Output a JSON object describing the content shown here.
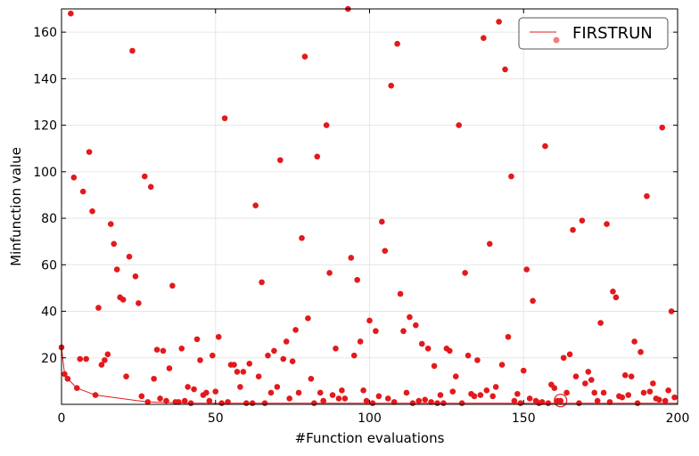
{
  "chart_data": {
    "type": "scatter",
    "title": "",
    "xlabel": "#Function evaluations",
    "ylabel": "Minfunction value",
    "xlim": [
      0,
      200
    ],
    "ylim": [
      0,
      170
    ],
    "xticks": [
      0,
      50,
      100,
      150,
      200
    ],
    "yticks": [
      20,
      40,
      60,
      80,
      100,
      120,
      140,
      160
    ],
    "grid": true,
    "legend_position": "top-right",
    "colors": {
      "points": "#e3191c",
      "line": "#e3191c",
      "legend_marker": "#f08080"
    },
    "series": [
      {
        "name": "FIRSTRUN",
        "points": [
          [
            0,
            24.5
          ],
          [
            1,
            13
          ],
          [
            2,
            11
          ],
          [
            3,
            168
          ],
          [
            4,
            97.5
          ],
          [
            5,
            7
          ],
          [
            6,
            19.5
          ],
          [
            7,
            91.5
          ],
          [
            8,
            19.5
          ],
          [
            9,
            108.5
          ],
          [
            10,
            83
          ],
          [
            11,
            4
          ],
          [
            12,
            41.5
          ],
          [
            13,
            17
          ],
          [
            14,
            19
          ],
          [
            15,
            21.5
          ],
          [
            16,
            77.5
          ],
          [
            17,
            69
          ],
          [
            18,
            58
          ],
          [
            19,
            46
          ],
          [
            20,
            45
          ],
          [
            21,
            12
          ],
          [
            22,
            63.5
          ],
          [
            23,
            152
          ],
          [
            24,
            55
          ],
          [
            25,
            43.5
          ],
          [
            26,
            3.5
          ],
          [
            27,
            98
          ],
          [
            28,
            1
          ],
          [
            29,
            93.5
          ],
          [
            30,
            11
          ],
          [
            31,
            23.5
          ],
          [
            32,
            2.5
          ],
          [
            33,
            23
          ],
          [
            34,
            1.5
          ],
          [
            35,
            15.5
          ],
          [
            36,
            51
          ],
          [
            37,
            1
          ],
          [
            38,
            1
          ],
          [
            39,
            24
          ],
          [
            40,
            1.5
          ],
          [
            41,
            7.5
          ],
          [
            42,
            0.5
          ],
          [
            43,
            6.5
          ],
          [
            44,
            28
          ],
          [
            45,
            19
          ],
          [
            46,
            4
          ],
          [
            47,
            5
          ],
          [
            48,
            1.5
          ],
          [
            49,
            21
          ],
          [
            50,
            5.5
          ],
          [
            51,
            29
          ],
          [
            52,
            0.5
          ],
          [
            53,
            123
          ],
          [
            54,
            1
          ],
          [
            55,
            17
          ],
          [
            56,
            17
          ],
          [
            57,
            14
          ],
          [
            58,
            7.5
          ],
          [
            59,
            14
          ],
          [
            60,
            0.5
          ],
          [
            61,
            17.5
          ],
          [
            62,
            0.5
          ],
          [
            63,
            85.5
          ],
          [
            64,
            12
          ],
          [
            65,
            52.5
          ],
          [
            66,
            0.5
          ],
          [
            67,
            21
          ],
          [
            68,
            5
          ],
          [
            69,
            23
          ],
          [
            70,
            7.5
          ],
          [
            71,
            105
          ],
          [
            72,
            19.5
          ],
          [
            73,
            27
          ],
          [
            74,
            2.5
          ],
          [
            75,
            18.5
          ],
          [
            76,
            32
          ],
          [
            77,
            5
          ],
          [
            78,
            71.5
          ],
          [
            79,
            149.5
          ],
          [
            80,
            37
          ],
          [
            81,
            11
          ],
          [
            82,
            0.5
          ],
          [
            83,
            106.5
          ],
          [
            84,
            5
          ],
          [
            85,
            1.5
          ],
          [
            86,
            120
          ],
          [
            87,
            56.5
          ],
          [
            88,
            4
          ],
          [
            89,
            24
          ],
          [
            90,
            2.5
          ],
          [
            91,
            6
          ],
          [
            92,
            2.5
          ],
          [
            93,
            170
          ],
          [
            94,
            63
          ],
          [
            95,
            21
          ],
          [
            96,
            53.5
          ],
          [
            97,
            27
          ],
          [
            98,
            6
          ],
          [
            99,
            1.5
          ],
          [
            100,
            36
          ],
          [
            101,
            0.5
          ],
          [
            102,
            31.5
          ],
          [
            103,
            3.5
          ],
          [
            104,
            78.5
          ],
          [
            105,
            66
          ],
          [
            106,
            2.5
          ],
          [
            107,
            137
          ],
          [
            108,
            1
          ],
          [
            109,
            155
          ],
          [
            110,
            47.5
          ],
          [
            111,
            31.5
          ],
          [
            112,
            5
          ],
          [
            113,
            37.5
          ],
          [
            114,
            0.5
          ],
          [
            115,
            34
          ],
          [
            116,
            1.5
          ],
          [
            117,
            26
          ],
          [
            118,
            2
          ],
          [
            119,
            24
          ],
          [
            120,
            1
          ],
          [
            121,
            16.5
          ],
          [
            122,
            0.5
          ],
          [
            123,
            4
          ],
          [
            124,
            0.5
          ],
          [
            125,
            24
          ],
          [
            126,
            23
          ],
          [
            127,
            5.5
          ],
          [
            128,
            12
          ],
          [
            129,
            120
          ],
          [
            130,
            0.5
          ],
          [
            131,
            56.5
          ],
          [
            132,
            21
          ],
          [
            133,
            4.5
          ],
          [
            134,
            3.5
          ],
          [
            135,
            19
          ],
          [
            136,
            4
          ],
          [
            137,
            157.5
          ],
          [
            138,
            6
          ],
          [
            139,
            69
          ],
          [
            140,
            3.5
          ],
          [
            141,
            7.5
          ],
          [
            142,
            164.5
          ],
          [
            143,
            17
          ],
          [
            144,
            144
          ],
          [
            145,
            29
          ],
          [
            146,
            98
          ],
          [
            147,
            1.5
          ],
          [
            148,
            4.5
          ],
          [
            149,
            0.5
          ],
          [
            150,
            14.5
          ],
          [
            151,
            58
          ],
          [
            152,
            2.5
          ],
          [
            153,
            44.5
          ],
          [
            154,
            1.5
          ],
          [
            155,
            0.5
          ],
          [
            156,
            1
          ],
          [
            157,
            111
          ],
          [
            158,
            0.5
          ],
          [
            159,
            8.5
          ],
          [
            160,
            7
          ],
          [
            161,
            1.5
          ],
          [
            162,
            1.5
          ],
          [
            163,
            20
          ],
          [
            164,
            5
          ],
          [
            165,
            21.5
          ],
          [
            166,
            75
          ],
          [
            167,
            12
          ],
          [
            168,
            0.5
          ],
          [
            169,
            79
          ],
          [
            170,
            9
          ],
          [
            171,
            14
          ],
          [
            172,
            10.5
          ],
          [
            173,
            5
          ],
          [
            174,
            1.5
          ],
          [
            175,
            35
          ],
          [
            176,
            5
          ],
          [
            177,
            77.5
          ],
          [
            178,
            1
          ],
          [
            179,
            48.5
          ],
          [
            180,
            46
          ],
          [
            181,
            3.5
          ],
          [
            182,
            3
          ],
          [
            183,
            12.5
          ],
          [
            184,
            4
          ],
          [
            185,
            12
          ],
          [
            186,
            27
          ],
          [
            187,
            0.5
          ],
          [
            188,
            22.5
          ],
          [
            189,
            5
          ],
          [
            190,
            89.5
          ],
          [
            191,
            5.5
          ],
          [
            192,
            9
          ],
          [
            193,
            2.5
          ],
          [
            194,
            2
          ],
          [
            195,
            119
          ],
          [
            196,
            1.5
          ],
          [
            197,
            6
          ],
          [
            198,
            40
          ],
          [
            199,
            3
          ]
        ],
        "min_line": [
          [
            0,
            24.5
          ],
          [
            1,
            13
          ],
          [
            2,
            11
          ],
          [
            5,
            7
          ],
          [
            11,
            4
          ],
          [
            28,
            1
          ],
          [
            42,
            0.5
          ],
          [
            162,
            0.5
          ],
          [
            200,
            0.5
          ]
        ],
        "highlight": [
          162,
          0.5
        ]
      }
    ]
  }
}
